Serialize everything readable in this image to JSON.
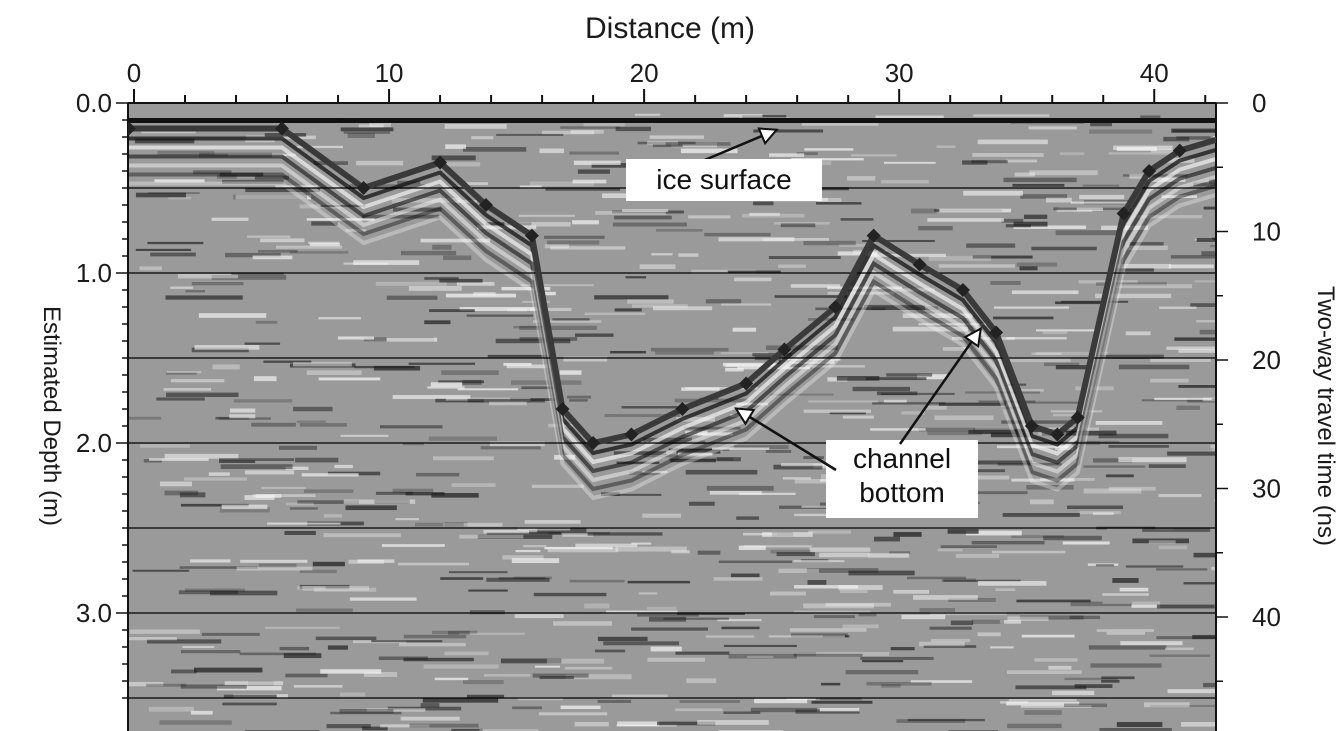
{
  "chart_data": {
    "type": "line",
    "title": "",
    "xlabel": "Distance (m)",
    "ylabel": "Estimated Depth (m)",
    "y2label": "Two-way travel time (ns)",
    "xlim": [
      -0.5,
      43
    ],
    "ylim": [
      0,
      3.6
    ],
    "y2lim": [
      0,
      45
    ],
    "x_ticks": [
      0,
      10,
      20,
      30,
      40
    ],
    "y_ticks": [
      0.0,
      1.0,
      2.0,
      3.0
    ],
    "y_tick_labels": [
      "0.0",
      "1.0",
      "2.0",
      "3.0"
    ],
    "y2_ticks": [
      0,
      10,
      20,
      30,
      40
    ],
    "grid": "horizontal every 0.5 m",
    "background": "grayscale GPR radargram",
    "series": [
      {
        "x": [
          -0.2,
          5.8,
          9.0,
          12.0,
          13.8,
          15.6,
          16.8,
          18.0,
          19.5,
          21.5,
          24.0,
          25.5,
          27.5,
          29.0,
          30.8,
          32.5,
          33.8,
          35.2,
          36.2,
          37.0,
          38.8,
          39.8,
          41.0,
          42.8
        ],
        "y": [
          0.15,
          0.15,
          0.5,
          0.35,
          0.6,
          0.78,
          1.8,
          2.0,
          1.95,
          1.8,
          1.65,
          1.45,
          1.2,
          0.78,
          0.95,
          1.1,
          1.35,
          1.9,
          1.95,
          1.85,
          0.65,
          0.4,
          0.28,
          0.2
        ]
      }
    ],
    "annotations": [
      {
        "text": "ice surface",
        "x": 25.2,
        "y": 0.11
      },
      {
        "text": "channel\nbottom",
        "x": 23.6,
        "y": 1.75
      },
      {
        "text": "channel\nbottom",
        "x": 33.2,
        "y": 1.28
      }
    ]
  }
}
